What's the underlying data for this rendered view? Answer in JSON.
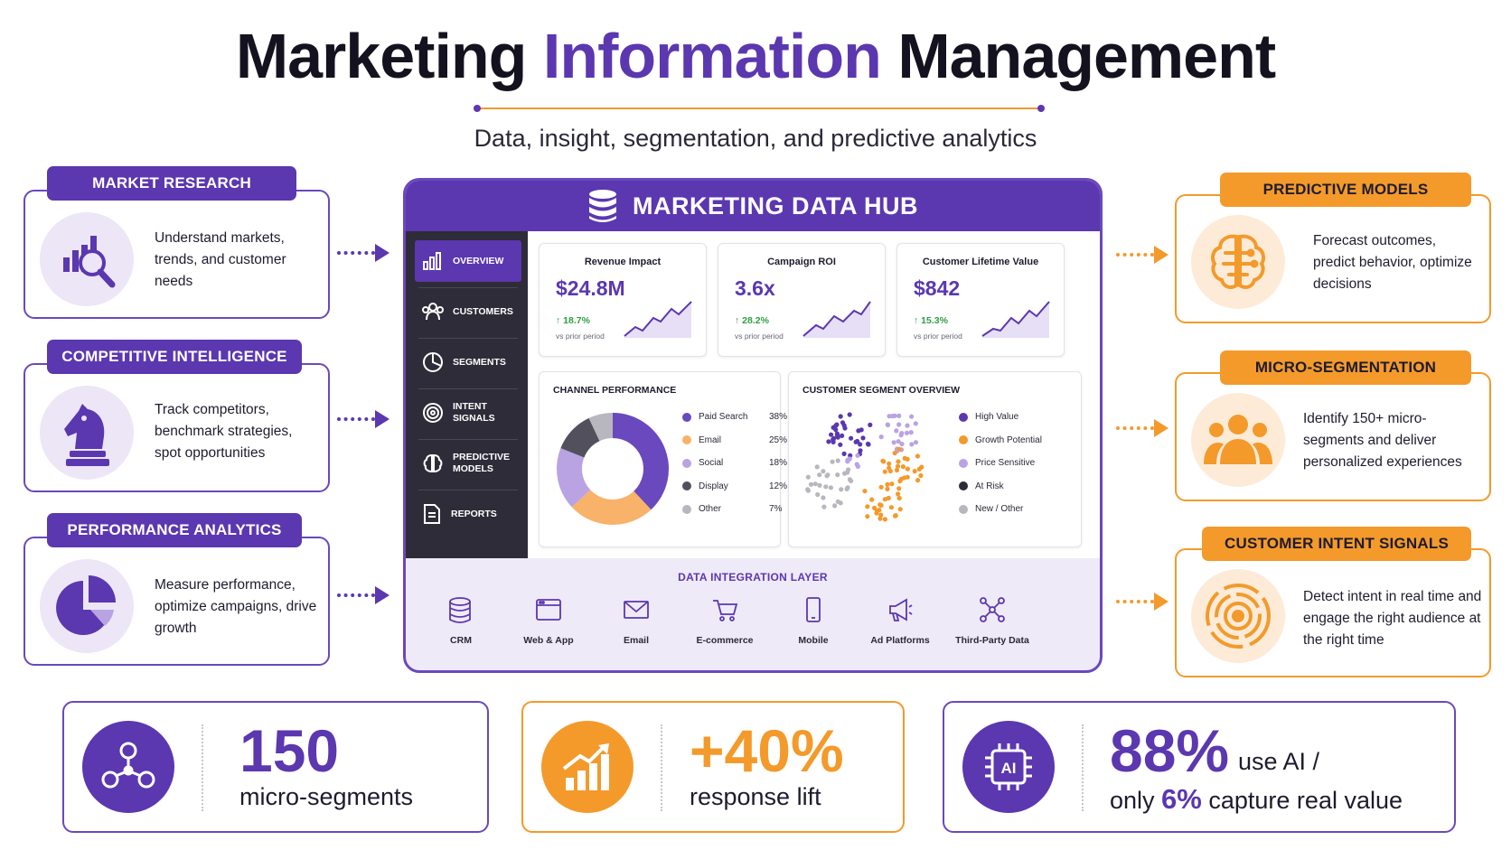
{
  "header": {
    "title_part1": "Marketing",
    "title_accent": "Information",
    "title_part2": "Management",
    "subtitle": "Data, insight, segmentation, and predictive analytics"
  },
  "left_cards": [
    {
      "tag": "MARKET RESEARCH",
      "text": "Understand markets, trends, and customer needs",
      "icon": "bar-chart-magnifier-icon"
    },
    {
      "tag": "COMPETITIVE INTELLIGENCE",
      "text": "Track competitors, benchmark strategies, spot opportunities",
      "icon": "chess-knight-icon"
    },
    {
      "tag": "PERFORMANCE ANALYTICS",
      "text": "Measure performance, optimize campaigns, drive growth",
      "icon": "pie-chart-icon"
    }
  ],
  "right_cards": [
    {
      "tag": "PREDICTIVE MODELS",
      "text": "Forecast outcomes, predict behavior, optimize decisions",
      "icon": "brain-circuit-icon"
    },
    {
      "tag": "MICRO-SEGMENTATION",
      "text": "Identify 150+ micro-segments and deliver personalized experiences",
      "icon": "people-group-icon"
    },
    {
      "tag": "CUSTOMER INTENT SIGNALS",
      "text": "Detect intent in real time and engage the right audience at the right time",
      "icon": "target-icon"
    }
  ],
  "hub": {
    "title": "MARKETING DATA HUB",
    "nav": [
      {
        "label": "OVERVIEW",
        "icon": "bar-chart-icon",
        "active": true
      },
      {
        "label": "CUSTOMERS",
        "icon": "users-icon"
      },
      {
        "label": "SEGMENTS",
        "icon": "pie-icon"
      },
      {
        "label": "INTENT SIGNALS",
        "icon": "target-icon"
      },
      {
        "label": "PREDICTIVE MODELS",
        "icon": "brain-icon"
      },
      {
        "label": "REPORTS",
        "icon": "document-icon"
      }
    ],
    "kpis": [
      {
        "label": "Revenue Impact",
        "value": "$24.8M",
        "delta": "↑ 18.7%",
        "sub": "vs prior period"
      },
      {
        "label": "Campaign ROI",
        "value": "3.6x",
        "delta": "↑ 28.2%",
        "sub": "vs prior period"
      },
      {
        "label": "Customer Lifetime Value",
        "value": "$842",
        "delta": "↑ 15.3%",
        "sub": "vs prior period"
      }
    ],
    "channel_title": "CHANNEL PERFORMANCE",
    "channels": [
      {
        "name": "Paid Search",
        "pct": "38%",
        "value": 38,
        "color": "#6a48bd"
      },
      {
        "name": "Email",
        "pct": "25%",
        "value": 25,
        "color": "#f8b269"
      },
      {
        "name": "Social",
        "pct": "18%",
        "value": 18,
        "color": "#b9a3e3"
      },
      {
        "name": "Display",
        "pct": "12%",
        "value": 12,
        "color": "#52505c"
      },
      {
        "name": "Other",
        "pct": "7%",
        "value": 7,
        "color": "#b8b6be"
      }
    ],
    "segment_title": "CUSTOMER SEGMENT OVERVIEW",
    "segments": [
      {
        "name": "High Value",
        "color": "#5b37b0"
      },
      {
        "name": "Growth Potential",
        "color": "#f39a2b"
      },
      {
        "name": "Price Sensitive",
        "color": "#b9a3e3"
      },
      {
        "name": "At Risk",
        "color": "#2e2c38"
      },
      {
        "name": "New / Other",
        "color": "#b8b6be"
      }
    ],
    "integration_title": "DATA INTEGRATION LAYER",
    "integrations": [
      {
        "label": "CRM",
        "icon": "database-icon"
      },
      {
        "label": "Web & App",
        "icon": "browser-icon"
      },
      {
        "label": "Email",
        "icon": "envelope-icon"
      },
      {
        "label": "E-commerce",
        "icon": "cart-icon"
      },
      {
        "label": "Mobile",
        "icon": "phone-icon"
      },
      {
        "label": "Ad Platforms",
        "icon": "megaphone-icon"
      },
      {
        "label": "Third-Party Data",
        "icon": "network-icon"
      }
    ]
  },
  "stats": [
    {
      "big": "150",
      "small": "micro-segments",
      "icon": "network-people-icon"
    },
    {
      "big": "+40%",
      "small": "response lift",
      "icon": "growth-chart-icon"
    },
    {
      "big": "88%",
      "small_a": "use AI /",
      "small_b_pre": "only",
      "small_b_num": "6%",
      "small_b_post": "capture real value",
      "icon": "ai-chip-icon"
    }
  ],
  "colors": {
    "purple": "#5b37b0",
    "orange": "#f39a2b",
    "ink": "#1f1b2e"
  }
}
